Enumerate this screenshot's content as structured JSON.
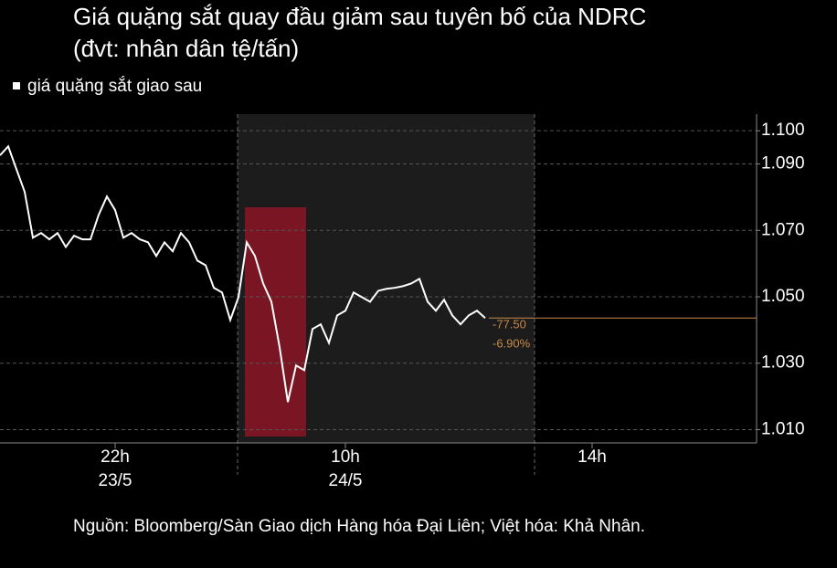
{
  "chart_data": {
    "type": "line",
    "title": "Giá quặng sắt quay đầu giảm sau tuyên bố của NDRC",
    "subtitle": "(đvt: nhân dân tệ/tấn)",
    "source": "Nguồn: Bloomberg/Sàn Giao dịch Hàng hóa Đại Liên; Việt hóa: Khả Nhân.",
    "categories": [
      null,
      null,
      null,
      null,
      null,
      null,
      null,
      null,
      null,
      null,
      null,
      null,
      null,
      null,
      "22h",
      null,
      null,
      null,
      null,
      null,
      null,
      null,
      null,
      null,
      null,
      null,
      null,
      null,
      null,
      null,
      null,
      null,
      null,
      null,
      null,
      null,
      null,
      null,
      null,
      null,
      null,
      null,
      "10h",
      null,
      null,
      null,
      null,
      null,
      null,
      null,
      null,
      null,
      null,
      null,
      null,
      null,
      null,
      null,
      null,
      null,
      null,
      null,
      null,
      null,
      null,
      null,
      null,
      null,
      null,
      null,
      null,
      null,
      "14h",
      null,
      null,
      null,
      null,
      null,
      null,
      null,
      null,
      null,
      null,
      null,
      null,
      null,
      null,
      null,
      null,
      null,
      null,
      null,
      null
    ],
    "category_dates": [
      null,
      null,
      null,
      null,
      null,
      null,
      null,
      null,
      null,
      null,
      null,
      null,
      null,
      null,
      "23/5",
      null,
      null,
      null,
      null,
      null,
      null,
      null,
      null,
      null,
      null,
      null,
      null,
      null,
      null,
      null,
      null,
      null,
      null,
      null,
      null,
      null,
      null,
      null,
      null,
      null,
      null,
      null,
      "24/5",
      null,
      null,
      null,
      null,
      null,
      null,
      null,
      null,
      null,
      null,
      null,
      null,
      null,
      null,
      null,
      null,
      null,
      null,
      null,
      null,
      null,
      null,
      null,
      null,
      null,
      null,
      null,
      null,
      null,
      null,
      null,
      null,
      null,
      null,
      null,
      null,
      null,
      null,
      null,
      null,
      null,
      null,
      null,
      null,
      null,
      null,
      null,
      null,
      null
    ],
    "series": [
      {
        "name": "giá quặng sắt giao sau",
        "color": "#ffffff",
        "values": [
          1092.6,
          1095.3,
          1088.4,
          1081.6,
          1067.8,
          1069.2,
          1067.3,
          1069.2,
          1065.0,
          1068.4,
          1067.3,
          1067.3,
          1074.7,
          1080.2,
          1076.1,
          1067.8,
          1069.2,
          1067.3,
          1066.4,
          1062.3,
          1066.4,
          1063.7,
          1069.2,
          1066.4,
          1060.9,
          1059.5,
          1052.7,
          1051.3,
          1043.0,
          1049.9,
          1066.4,
          1062.3,
          1054.0,
          1048.5,
          1034.8,
          1018.3,
          1029.3,
          1027.9,
          1040.3,
          1041.7,
          1036.1,
          1044.4,
          1045.8,
          1051.3,
          1049.9,
          1048.5,
          1051.8,
          1052.4,
          1052.7,
          1053.2,
          1054.0,
          1055.4,
          1048.5,
          1045.8,
          1049.1,
          1044.4,
          1041.7,
          1044.4,
          1045.8,
          1043.6,
          null,
          null,
          null,
          null,
          null,
          null,
          null,
          null,
          null,
          null,
          null,
          null,
          null,
          null,
          null,
          null,
          null,
          null,
          null,
          null,
          null,
          null,
          null,
          null,
          null,
          null,
          null,
          null,
          null,
          null,
          null,
          null,
          null
        ]
      }
    ],
    "annotations": [
      "-77.50",
      "-6.90%"
    ],
    "annotation_color": "#c8894a",
    "ylim": [
      1006,
      1105
    ],
    "yticks": [
      {
        "value": 1010,
        "label": "1.010"
      },
      {
        "value": 1030,
        "label": "1.030"
      },
      {
        "value": 1050,
        "label": "1.050"
      },
      {
        "value": 1070,
        "label": "1.070"
      },
      {
        "value": 1090,
        "label": "1.090"
      },
      {
        "value": 1100,
        "label": "1.100"
      }
    ],
    "grid": true,
    "background": "#000000"
  }
}
